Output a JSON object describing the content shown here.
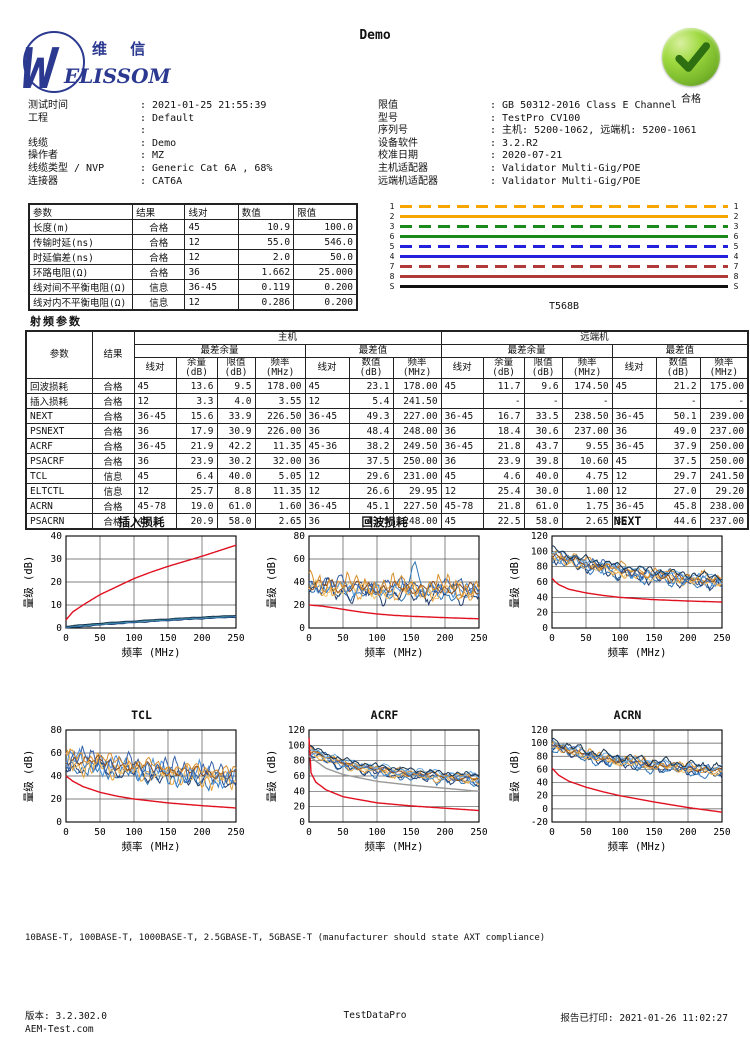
{
  "title": "Demo",
  "logo": {
    "cn": "维 信",
    "en": "ELISSOM",
    "mark": "W"
  },
  "status_badge": {
    "label": "合格"
  },
  "info_left": [
    {
      "label": "测试时间",
      "value": "2021-01-25 21:55:39"
    },
    {
      "label": "工程",
      "value": "Default"
    },
    {
      "label": "",
      "value": ""
    },
    {
      "label": "线缆",
      "value": "Demo"
    },
    {
      "label": "操作者",
      "value": "MZ"
    },
    {
      "label": "线缆类型 / NVP",
      "value": "Generic Cat 6A , 68%"
    },
    {
      "label": "连接器",
      "value": "CAT6A"
    }
  ],
  "info_right": [
    {
      "label": "限值",
      "value": "GB 50312-2016 Class E Channel"
    },
    {
      "label": "型号",
      "value": "TestPro CV100"
    },
    {
      "label": "序列号",
      "value": "主机: 5200-1062, 远端机: 5200-1061"
    },
    {
      "label": "设备软件",
      "value": "3.2.R2"
    },
    {
      "label": "校准日期",
      "value": "2020-07-21"
    },
    {
      "label": "主机适配器",
      "value": "Validator Multi-Gig/POE"
    },
    {
      "label": "远端机适配器",
      "value": "Validator Multi-Gig/POE"
    }
  ],
  "param_table": {
    "headers": [
      "参数",
      "结果",
      "线对",
      "数值",
      "限值"
    ],
    "rows": [
      [
        "长度(m)",
        "合格",
        "45",
        "10.9",
        "100.0"
      ],
      [
        "传输时延(ns)",
        "合格",
        "12",
        "55.0",
        "546.0"
      ],
      [
        "时延偏差(ns)",
        "合格",
        "12",
        "2.0",
        "50.0"
      ],
      [
        "环路电阻(Ω)",
        "合格",
        "36",
        "1.662",
        "25.000"
      ],
      [
        "线对间不平衡电阻(Ω)",
        "信息",
        "36-45",
        "0.119",
        "0.200"
      ],
      [
        "线对内不平衡电阻(Ω)",
        "信息",
        "12",
        "0.286",
        "0.200"
      ]
    ]
  },
  "wiremap": {
    "title": "T568B",
    "wires": [
      {
        "pin": "1",
        "color": "#f7a600",
        "style": "dashed"
      },
      {
        "pin": "2",
        "color": "#f7a600",
        "style": "solid"
      },
      {
        "pin": "3",
        "color": "#1a8a1a",
        "style": "dashed"
      },
      {
        "pin": "6",
        "color": "#1a8a1a",
        "style": "solid"
      },
      {
        "pin": "5",
        "color": "#2222dd",
        "style": "dashed"
      },
      {
        "pin": "4",
        "color": "#2222dd",
        "style": "solid"
      },
      {
        "pin": "7",
        "color": "#b03a3a",
        "style": "dashed"
      },
      {
        "pin": "8",
        "color": "#b03a3a",
        "style": "solid"
      },
      {
        "pin": "S",
        "color": "#111111",
        "style": "solid"
      }
    ]
  },
  "rf_table": {
    "title": "射频参数",
    "group": {
      "main": "主机",
      "remote": "远端机",
      "worst_margin": "最差余量",
      "worst_value": "最差值"
    },
    "col": {
      "param": "参数",
      "result": "结果",
      "pair": {
        "t": "线对",
        "u": ""
      },
      "margin": {
        "t": "余量",
        "u": "(dB)"
      },
      "limit": {
        "t": "限值",
        "u": "(dB)"
      },
      "freq": {
        "t": "频率",
        "u": "(MHz)"
      },
      "value": {
        "t": "数值",
        "u": "(dB)"
      }
    },
    "rows": [
      {
        "param": "回波损耗",
        "result": "合格",
        "cells": [
          "45",
          "13.6",
          "9.5",
          "178.00",
          "45",
          "23.1",
          "178.00",
          "45",
          "11.7",
          "9.6",
          "174.50",
          "45",
          "21.2",
          "175.00"
        ]
      },
      {
        "param": "插入损耗",
        "result": "合格",
        "cells": [
          "12",
          "3.3",
          "4.0",
          "3.55",
          "12",
          "5.4",
          "241.50",
          "",
          "-",
          "-",
          "-",
          "",
          "-",
          "-"
        ]
      },
      {
        "param": "NEXT",
        "result": "合格",
        "cells": [
          "36-45",
          "15.6",
          "33.9",
          "226.50",
          "36-45",
          "49.3",
          "227.00",
          "36-45",
          "16.7",
          "33.5",
          "238.50",
          "36-45",
          "50.1",
          "239.00"
        ]
      },
      {
        "param": "PSNEXT",
        "result": "合格",
        "cells": [
          "36",
          "17.9",
          "30.9",
          "226.00",
          "36",
          "48.4",
          "248.00",
          "36",
          "18.4",
          "30.6",
          "237.00",
          "36",
          "49.0",
          "237.00"
        ]
      },
      {
        "param": "ACRF",
        "result": "合格",
        "cells": [
          "36-45",
          "21.9",
          "42.2",
          "11.35",
          "45-36",
          "38.2",
          "249.50",
          "36-45",
          "21.8",
          "43.7",
          "9.55",
          "36-45",
          "37.9",
          "250.00"
        ]
      },
      {
        "param": "PSACRF",
        "result": "合格",
        "cells": [
          "36",
          "23.9",
          "30.2",
          "32.00",
          "36",
          "37.5",
          "250.00",
          "36",
          "23.9",
          "39.8",
          "10.60",
          "45",
          "37.5",
          "250.00"
        ]
      },
      {
        "param": "TCL",
        "result": "信息",
        "cells": [
          "45",
          "6.4",
          "40.0",
          "5.05",
          "12",
          "29.6",
          "231.00",
          "45",
          "4.6",
          "40.0",
          "4.75",
          "12",
          "29.7",
          "241.50"
        ]
      },
      {
        "param": "ELTCTL",
        "result": "信息",
        "cells": [
          "12",
          "25.7",
          "8.8",
          "11.35",
          "12",
          "26.6",
          "29.95",
          "12",
          "25.4",
          "30.0",
          "1.00",
          "12",
          "27.0",
          "29.20"
        ]
      },
      {
        "param": "ACRN",
        "result": "合格",
        "cells": [
          "45-78",
          "19.0",
          "61.0",
          "1.60",
          "36-45",
          "45.1",
          "227.50",
          "45-78",
          "21.8",
          "61.0",
          "1.75",
          "36-45",
          "45.8",
          "238.00"
        ]
      },
      {
        "param": "PSACRN",
        "result": "合格",
        "cells": [
          "45",
          "20.9",
          "58.0",
          "2.65",
          "36",
          "43.9",
          "248.00",
          "45",
          "22.5",
          "58.0",
          "2.65",
          "36",
          "44.6",
          "237.00"
        ]
      }
    ]
  },
  "chart_data": [
    {
      "type": "line",
      "name": "chart-insertion-loss",
      "title": "插入损耗",
      "xlabel": "频率 (MHz)",
      "ylabel": "量级 (dB)",
      "xlim": [
        0,
        250
      ],
      "xticks": [
        0,
        50,
        100,
        150,
        200,
        250
      ],
      "ylim": [
        0,
        40
      ],
      "yticks": [
        0,
        10,
        20,
        30,
        40
      ],
      "grid": true,
      "legend": "none",
      "limits": [
        {
          "color": "#e01020",
          "points": [
            [
              0,
              3.5
            ],
            [
              10,
              7
            ],
            [
              25,
              10
            ],
            [
              50,
              14.5
            ],
            [
              75,
              18
            ],
            [
              100,
              21.5
            ],
            [
              125,
              24.3
            ],
            [
              150,
              26.8
            ],
            [
              175,
              29
            ],
            [
              200,
              31.2
            ],
            [
              225,
              33.6
            ],
            [
              250,
              36
            ]
          ]
        }
      ],
      "traces": {
        "colors": [
          "#1f3c6e",
          "#2e75b6",
          "#3c8f9a",
          "#16324f"
        ],
        "spread": 0.4,
        "ripple": 0.12,
        "base": [
          [
            0,
            0.4
          ],
          [
            50,
            1.7
          ],
          [
            100,
            2.7
          ],
          [
            150,
            3.6
          ],
          [
            200,
            4.4
          ],
          [
            250,
            5.1
          ]
        ]
      }
    },
    {
      "type": "line",
      "name": "chart-return-loss",
      "title": "回波损耗",
      "xlabel": "频率 (MHz)",
      "ylabel": "量级 (dB)",
      "xlim": [
        0,
        250
      ],
      "xticks": [
        0,
        50,
        100,
        150,
        200,
        250
      ],
      "ylim": [
        0,
        80
      ],
      "yticks": [
        0,
        20,
        40,
        60,
        80
      ],
      "grid": true,
      "legend": "none",
      "limits": [
        {
          "color": "#e01020",
          "points": [
            [
              0,
              20
            ],
            [
              20,
              19
            ],
            [
              40,
              17.2
            ],
            [
              60,
              15.3
            ],
            [
              80,
              13.6
            ],
            [
              100,
              12.2
            ],
            [
              125,
              11
            ],
            [
              150,
              10.2
            ],
            [
              175,
              9.6
            ],
            [
              200,
              9
            ],
            [
              225,
              8.5
            ],
            [
              250,
              8
            ]
          ]
        }
      ],
      "traces": {
        "colors": [
          "#2e75b6",
          "#1f3c6e",
          "#e8a33d",
          "#f2c572",
          "#4a90d9",
          "#8a4a18",
          "#3561a8",
          "#d98e2b"
        ],
        "spread": 4,
        "ripple": 7.5,
        "base": [
          [
            0,
            37
          ],
          [
            60,
            34
          ],
          [
            120,
            33
          ],
          [
            190,
            33
          ],
          [
            250,
            32
          ]
        ],
        "spike": {
          "series": 0,
          "x": 155,
          "h": 30,
          "w": 5
        }
      }
    },
    {
      "type": "line",
      "name": "chart-next",
      "title": "NEXT",
      "xlabel": "频率 (MHz)",
      "ylabel": "量级 (dB)",
      "xlim": [
        0,
        250
      ],
      "xticks": [
        0,
        50,
        100,
        150,
        200,
        250
      ],
      "ylim": [
        0,
        120
      ],
      "yticks": [
        0,
        20,
        40,
        60,
        80,
        100,
        120
      ],
      "grid": true,
      "legend": "none",
      "limits": [
        {
          "color": "#e01020",
          "points": [
            [
              0,
              65
            ],
            [
              5,
              60
            ],
            [
              10,
              56.5
            ],
            [
              25,
              50.5
            ],
            [
              50,
              45.8
            ],
            [
              75,
              42.5
            ],
            [
              100,
              39.9
            ],
            [
              150,
              37
            ],
            [
              200,
              35.2
            ],
            [
              250,
              33.9
            ]
          ]
        }
      ],
      "traces": {
        "colors": [
          "#2e75b6",
          "#1f3c6e",
          "#e8a33d",
          "#f2c572",
          "#4a90d9",
          "#8a4a18",
          "#3561a8",
          "#d98e2b",
          "#6aabdd",
          "#16324f"
        ],
        "spread": 6,
        "ripple": 6.5,
        "base": [
          [
            0,
            97
          ],
          [
            30,
            88
          ],
          [
            60,
            82
          ],
          [
            100,
            75
          ],
          [
            150,
            69
          ],
          [
            200,
            64
          ],
          [
            250,
            61
          ]
        ]
      }
    },
    {
      "type": "line",
      "name": "chart-tcl",
      "title": "TCL",
      "xlabel": "频率 (MHz)",
      "ylabel": "量级 (dB)",
      "xlim": [
        0,
        250
      ],
      "xticks": [
        0,
        50,
        100,
        150,
        200,
        250
      ],
      "ylim": [
        0,
        80
      ],
      "yticks": [
        0,
        20,
        40,
        60,
        80
      ],
      "grid": true,
      "legend": "none",
      "limits": [
        {
          "color": "#e01020",
          "points": [
            [
              0,
              40
            ],
            [
              10,
              35.5
            ],
            [
              25,
              30.8
            ],
            [
              50,
              25.8
            ],
            [
              75,
              22.5
            ],
            [
              100,
              20
            ],
            [
              150,
              16.6
            ],
            [
              200,
              14.2
            ],
            [
              250,
              12.2
            ]
          ]
        }
      ],
      "traces": {
        "colors": [
          "#2e75b6",
          "#1f3c6e",
          "#e8a33d",
          "#f2c572",
          "#4a90d9",
          "#8a4a18",
          "#3561a8",
          "#d98e2b"
        ],
        "spread": 5,
        "ripple": 8,
        "base": [
          [
            0,
            53
          ],
          [
            50,
            50
          ],
          [
            100,
            46
          ],
          [
            150,
            43
          ],
          [
            200,
            41
          ],
          [
            250,
            38
          ]
        ]
      }
    },
    {
      "type": "line",
      "name": "chart-acrf",
      "title": "ACRF",
      "xlabel": "频率 (MHz)",
      "ylabel": "量级 (dB)",
      "xlim": [
        0,
        250
      ],
      "xticks": [
        0,
        50,
        100,
        150,
        200,
        250
      ],
      "ylim": [
        0,
        120
      ],
      "yticks": [
        0,
        20,
        40,
        60,
        80,
        100,
        120
      ],
      "grid": true,
      "legend": "none",
      "limits": [
        {
          "color": "#e01020",
          "points": [
            [
              0,
              110
            ],
            [
              3,
              64
            ],
            [
              10,
              52
            ],
            [
              25,
              42
            ],
            [
              50,
              33
            ],
            [
              100,
              25
            ],
            [
              150,
              21
            ],
            [
              200,
              18
            ],
            [
              250,
              15
            ]
          ]
        },
        {
          "color": "#999999",
          "points": [
            [
              0,
              86
            ],
            [
              25,
              70
            ],
            [
              50,
              62
            ],
            [
              100,
              53
            ],
            [
              150,
              48
            ],
            [
              200,
              44
            ],
            [
              250,
              40
            ]
          ]
        }
      ],
      "traces": {
        "colors": [
          "#2e75b6",
          "#1f3c6e",
          "#e8a33d",
          "#f2c572",
          "#4a90d9",
          "#8a4a18",
          "#3561a8",
          "#d98e2b",
          "#6aabdd",
          "#16324f"
        ],
        "spread": 5,
        "ripple": 4.5,
        "base": [
          [
            0,
            94
          ],
          [
            30,
            82
          ],
          [
            60,
            74
          ],
          [
            100,
            68
          ],
          [
            150,
            63
          ],
          [
            200,
            59
          ],
          [
            250,
            56
          ]
        ]
      }
    },
    {
      "type": "line",
      "name": "chart-acrn",
      "title": "ACRN",
      "xlabel": "频率 (MHz)",
      "ylabel": "量级 (dB)",
      "xlim": [
        0,
        250
      ],
      "xticks": [
        0,
        50,
        100,
        150,
        200,
        250
      ],
      "ylim": [
        -20,
        120
      ],
      "yticks": [
        -20,
        0,
        20,
        40,
        60,
        80,
        100,
        120
      ],
      "grid": true,
      "legend": "none",
      "limits": [
        {
          "color": "#e01020",
          "points": [
            [
              0,
              62
            ],
            [
              10,
              51
            ],
            [
              25,
              42
            ],
            [
              50,
              33
            ],
            [
              75,
              26
            ],
            [
              100,
              20
            ],
            [
              150,
              10.5
            ],
            [
              200,
              2
            ],
            [
              250,
              -5
            ]
          ]
        }
      ],
      "traces": {
        "colors": [
          "#2e75b6",
          "#1f3c6e",
          "#e8a33d",
          "#f2c572",
          "#4a90d9",
          "#8a4a18",
          "#3561a8",
          "#d98e2b",
          "#6aabdd",
          "#16324f"
        ],
        "spread": 6,
        "ripple": 6,
        "base": [
          [
            0,
            98
          ],
          [
            30,
            88
          ],
          [
            60,
            80
          ],
          [
            100,
            73
          ],
          [
            150,
            67
          ],
          [
            200,
            62
          ],
          [
            250,
            58
          ]
        ]
      }
    }
  ],
  "footnote": "10BASE-T, 100BASE-T, 1000BASE-T, 2.5GBASE-T, 5GBASE-T (manufacturer should state AXT compliance)",
  "footer": {
    "version": "版本: 3.2.302.0",
    "website": "AEM-Test.com",
    "center": "TestDataPro",
    "printed": "报告已打印: 2021-01-26 11:02:27"
  }
}
